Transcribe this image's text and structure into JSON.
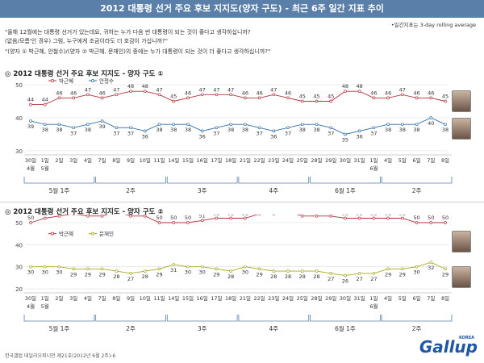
{
  "header": {
    "title": "2012 대통령 선거 주요 후보 지지도(양자 구도) - 최근 6주 일간 지표 추이"
  },
  "note": "•일간지표는 3-day rolling average",
  "questions": [
    "\"올해 12월에는 대통령 선거가 있는데요, 귀하는 누가 다음 번 대통령이 되는 것이 좋다고 생각하십니까?",
    "(없음/모름'인 경우) 그럼, 누구에게 조금이라도 더 호감이 가십니까?\"",
    "\"(양자 ① 박근혜, 안철수)/(양자 ② 박근혜, 문재인)의 중에는 누가 대통령이 되는 것이 더 좋다고 생각하십니까?\""
  ],
  "source": "한국갤럽 데일리오피니언 제21호(2012년 6월 2주)-6",
  "logo": {
    "brand": "Gallup",
    "sub": "KOREA"
  },
  "chart_data": [
    {
      "type": "line",
      "title": "◎ 2012 대통령 선거 주요 후보 지지도 - 양자 구도 ①",
      "x": [
        "30일",
        "1일",
        "2일",
        "3일",
        "4일",
        "7일",
        "8일",
        "9일",
        "10일",
        "11일",
        "14일",
        "15일",
        "16일",
        "17일",
        "18일",
        "21일",
        "22일",
        "23일",
        "24일",
        "25일",
        "28일",
        "29일",
        "30일",
        "31일",
        "1일",
        "4일",
        "5일",
        "6일",
        "7일",
        "8일"
      ],
      "month_labels": [
        {
          "label": "4월",
          "index": 0
        },
        {
          "label": "5월",
          "index": 1
        },
        {
          "label": "6월",
          "index": 24
        }
      ],
      "week_labels": [
        "5월 1주",
        "2주",
        "3주",
        "4주",
        "6월 1주",
        "2주"
      ],
      "ylim": [
        30,
        50
      ],
      "yticks": [
        30,
        40,
        50
      ],
      "series": [
        {
          "name": "박근혜",
          "color": "#b5323c",
          "values": [
            44,
            44,
            46,
            46,
            47,
            46,
            47,
            48,
            48,
            47,
            45,
            46,
            47,
            47,
            47,
            46,
            46,
            47,
            46,
            45,
            45,
            45,
            48,
            48,
            46,
            46,
            47,
            46,
            46,
            45
          ]
        },
        {
          "name": "안철수",
          "color": "#2f6fad",
          "values": [
            39,
            38,
            38,
            37,
            38,
            39,
            37,
            37,
            36,
            38,
            38,
            38,
            36,
            37,
            38,
            38,
            37,
            36,
            37,
            38,
            38,
            37,
            35,
            36,
            37,
            38,
            38,
            38,
            40,
            38
          ]
        }
      ]
    },
    {
      "type": "line",
      "title": "◎ 2012 대통령 선거 주요 후보 지지도 - 양자 구도 ②",
      "x": [
        "30일",
        "1일",
        "2일",
        "3일",
        "4일",
        "7일",
        "8일",
        "9일",
        "10일",
        "11일",
        "14일",
        "15일",
        "16일",
        "17일",
        "18일",
        "21일",
        "22일",
        "23일",
        "24일",
        "25일",
        "28일",
        "29일",
        "30일",
        "31일",
        "1일",
        "4일",
        "5일",
        "6일",
        "7일",
        "8일"
      ],
      "month_labels": [
        {
          "label": "4월",
          "index": 0
        },
        {
          "label": "5월",
          "index": 1
        },
        {
          "label": "6월",
          "index": 24
        }
      ],
      "week_labels": [
        "5월 1주",
        "2주",
        "3주",
        "4주",
        "6월 1주",
        "2주"
      ],
      "ylim": [
        20,
        50
      ],
      "yticks": [
        20,
        30,
        40,
        50
      ],
      "series": [
        {
          "name": "박근혜",
          "color": "#b5323c",
          "values": [
            50,
            52,
            53,
            54,
            53,
            53,
            55,
            53,
            53,
            50,
            50,
            50,
            51,
            52,
            52,
            52,
            54,
            54,
            55,
            53,
            53,
            53,
            52,
            52,
            52,
            52,
            52,
            50,
            50,
            50
          ]
        },
        {
          "name": "문재인",
          "color": "#a8a820",
          "values": [
            30,
            30,
            30,
            29,
            29,
            29,
            28,
            27,
            28,
            29,
            31,
            30,
            30,
            29,
            28,
            30,
            29,
            28,
            28,
            28,
            28,
            27,
            26,
            27,
            27,
            29,
            29,
            30,
            32,
            29
          ]
        }
      ]
    }
  ]
}
